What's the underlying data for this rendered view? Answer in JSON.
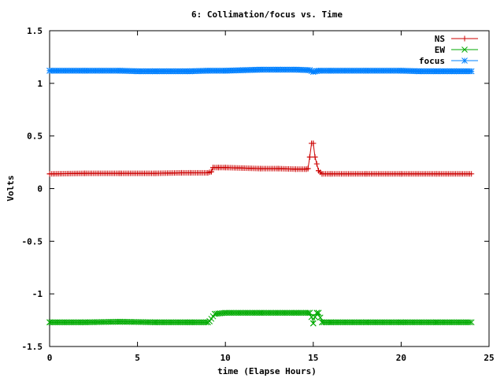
{
  "chart_data": {
    "type": "line",
    "title": "6: Collimation/focus vs. Time",
    "xlabel": "time (Elapse Hours)",
    "ylabel": "Volts",
    "xlim": [
      0,
      25
    ],
    "ylim": [
      -1.5,
      1.5
    ],
    "xticks": [
      0,
      5,
      10,
      15,
      20,
      25
    ],
    "yticks": [
      -1.5,
      -1,
      -0.5,
      0,
      0.5,
      1,
      1.5
    ],
    "ytick_labels": [
      "-1.5",
      "-1",
      "-0.5",
      "0",
      "0.5",
      "1",
      "1.5"
    ],
    "grid": false,
    "legend_position": "top-right",
    "series": [
      {
        "name": "NS",
        "color": "#cc0000",
        "marker": "plus",
        "x": [
          0,
          2,
          4,
          6,
          7.5,
          8,
          9,
          9.2,
          9.3,
          9.6,
          10,
          11,
          12,
          13,
          14,
          14.6,
          14.7,
          14.8,
          14.9,
          15.0,
          15.1,
          15.3,
          15.5,
          16,
          18,
          20,
          22,
          24
        ],
        "y": [
          0.14,
          0.145,
          0.145,
          0.145,
          0.15,
          0.15,
          0.15,
          0.16,
          0.2,
          0.2,
          0.2,
          0.195,
          0.19,
          0.19,
          0.185,
          0.185,
          0.19,
          0.3,
          0.43,
          0.43,
          0.3,
          0.17,
          0.14,
          0.14,
          0.14,
          0.14,
          0.14,
          0.14
        ]
      },
      {
        "name": "EW",
        "color": "#00aa00",
        "marker": "cross",
        "x": [
          0,
          2,
          4,
          6,
          8,
          9,
          9.1,
          9.4,
          10,
          12,
          14,
          14.8,
          14.9,
          15.0,
          15.1,
          15.2,
          15.3,
          15.5,
          16,
          18,
          20,
          22,
          24
        ],
        "y": [
          -1.27,
          -1.27,
          -1.265,
          -1.27,
          -1.27,
          -1.27,
          -1.26,
          -1.19,
          -1.18,
          -1.18,
          -1.18,
          -1.18,
          -1.22,
          -1.28,
          -1.22,
          -1.18,
          -1.18,
          -1.27,
          -1.27,
          -1.27,
          -1.27,
          -1.27,
          -1.27
        ]
      },
      {
        "name": "focus",
        "color": "#0080ff",
        "marker": "star",
        "x": [
          0,
          2,
          4,
          5,
          6,
          8,
          9,
          10,
          11,
          12,
          13,
          14,
          14.8,
          15,
          15.3,
          16,
          18,
          20,
          21,
          22,
          23,
          24
        ],
        "y": [
          1.12,
          1.12,
          1.12,
          1.115,
          1.115,
          1.115,
          1.12,
          1.12,
          1.125,
          1.13,
          1.13,
          1.13,
          1.125,
          1.11,
          1.12,
          1.12,
          1.12,
          1.12,
          1.115,
          1.115,
          1.115,
          1.115
        ]
      }
    ]
  }
}
